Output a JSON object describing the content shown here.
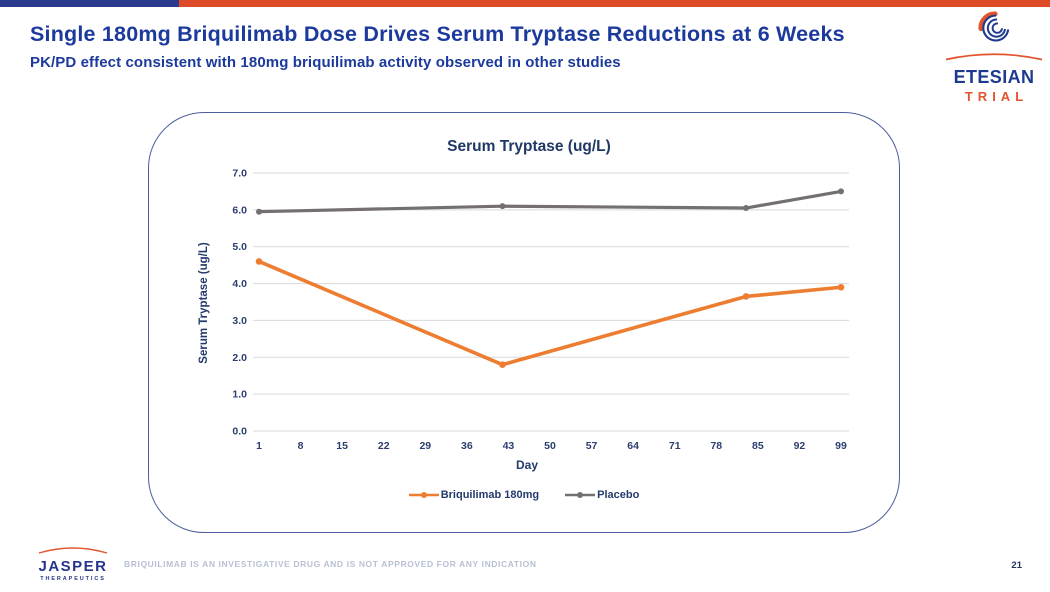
{
  "slide": {
    "title": "Single 180mg Briquilimab Dose Drives Serum Tryptase Reductions at 6 Weeks",
    "subtitle": "PK/PD effect consistent with 180mg briquilimab activity observed in other studies",
    "page_number": "21",
    "footer_disclaimer": "BRIQUILIMAB IS AN INVESTIGATIVE DRUG AND IS NOT APPROVED FOR ANY INDICATION"
  },
  "logos": {
    "etesian": {
      "name": "ETESIAN",
      "sub": "TRIAL",
      "icon": "wave-spiral-icon"
    },
    "jasper": {
      "name": "JASPER",
      "sub": "THERAPEUTICS",
      "icon": "arc-swoosh-icon"
    }
  },
  "colors": {
    "header_navy": "#1c3a9c",
    "accent_orange": "#dc4a28",
    "accent_blue": "#2c3a8e",
    "chart_text_navy": "#243a6d",
    "series_orange": "#ED7D31",
    "series_gray": "#757070",
    "gridline": "#d9d9d9",
    "card_border": "#4d5d9d",
    "muted_footer": "#b7c1d3"
  },
  "chart_data": {
    "type": "line",
    "title": "Serum Tryptase (ug/L)",
    "xlabel": "Day",
    "ylabel": "Serum Tryptase (ug/L)",
    "ylim": [
      0.0,
      7.0
    ],
    "yticks": [
      "0.0",
      "1.0",
      "2.0",
      "3.0",
      "4.0",
      "5.0",
      "6.0",
      "7.0"
    ],
    "xticks": [
      1,
      8,
      15,
      22,
      29,
      36,
      43,
      50,
      57,
      64,
      71,
      78,
      85,
      92,
      99
    ],
    "x": [
      1,
      42,
      83,
      99
    ],
    "series": [
      {
        "name": "Briquilimab 180mg",
        "color": "#ED7D31",
        "values": [
          4.6,
          1.8,
          3.65,
          3.9
        ]
      },
      {
        "name": "Placebo",
        "color": "#757070",
        "values": [
          5.95,
          6.1,
          6.05,
          6.5
        ]
      }
    ],
    "grid": true,
    "legend_position": "bottom"
  }
}
